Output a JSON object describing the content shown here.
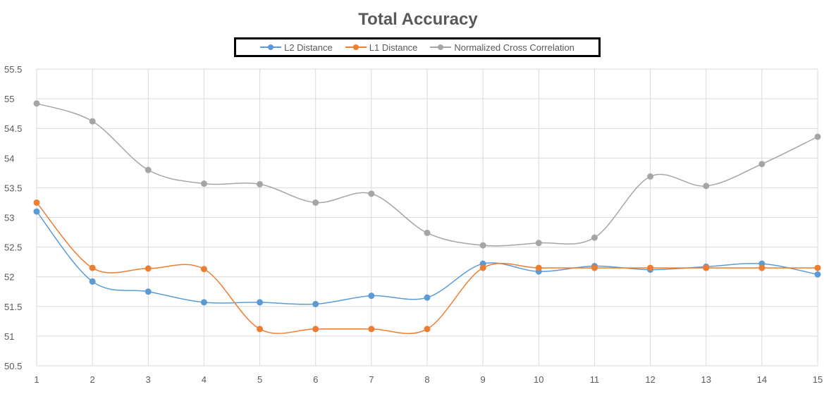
{
  "chart_data": {
    "type": "line",
    "title": "Total Accuracy",
    "xlabel": "",
    "ylabel": "",
    "x": [
      1,
      2,
      3,
      4,
      5,
      6,
      7,
      8,
      9,
      10,
      11,
      12,
      13,
      14,
      15
    ],
    "ylim": [
      50.5,
      55.5
    ],
    "yticks": [
      "50.5",
      "51",
      "51.5",
      "52",
      "52.5",
      "53",
      "53.5",
      "54",
      "54.5",
      "55",
      "55.5"
    ],
    "xticks": [
      "1",
      "2",
      "3",
      "4",
      "5",
      "6",
      "7",
      "8",
      "9",
      "10",
      "11",
      "12",
      "13",
      "14",
      "15"
    ],
    "grid": true,
    "legend_position": "top",
    "smooth": true,
    "series": [
      {
        "name": "L2 Distance",
        "color": "#5B9BD5",
        "values": [
          53.1,
          51.92,
          51.75,
          51.57,
          51.57,
          51.54,
          51.68,
          51.65,
          52.22,
          52.09,
          52.18,
          52.12,
          52.17,
          52.22,
          52.04
        ]
      },
      {
        "name": "L1 Distance",
        "color": "#ED7D31",
        "values": [
          53.25,
          52.15,
          52.14,
          52.13,
          51.12,
          51.12,
          51.12,
          51.12,
          52.15,
          52.15,
          52.15,
          52.15,
          52.15,
          52.15,
          52.15
        ]
      },
      {
        "name": "Normalized Cross Correlation",
        "color": "#A5A5A5",
        "values": [
          54.92,
          54.62,
          53.8,
          53.57,
          53.56,
          53.25,
          53.4,
          52.74,
          52.53,
          52.57,
          52.66,
          53.69,
          53.53,
          53.9,
          54.36
        ]
      }
    ]
  }
}
